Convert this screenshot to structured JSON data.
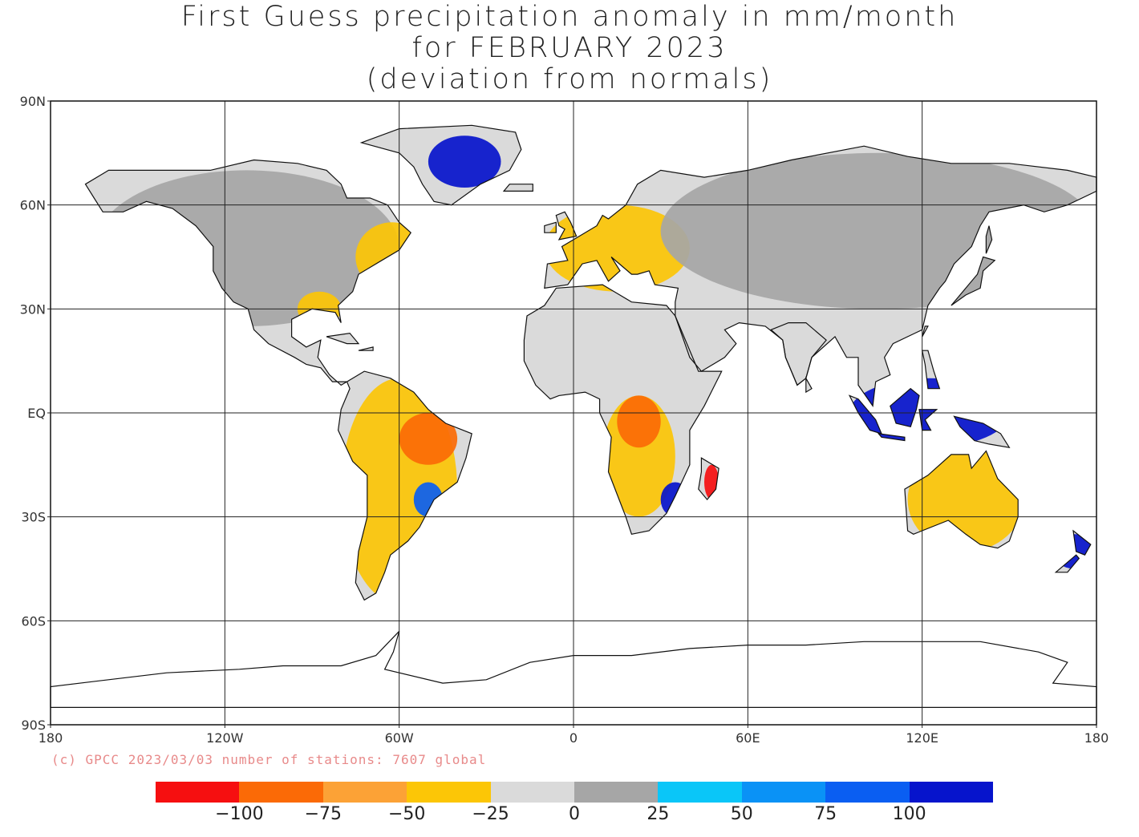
{
  "title": {
    "line1": "First Guess precipitation anomaly in mm/month",
    "line2": "for FEBRUARY 2023",
    "line3": "(deviation from normals)"
  },
  "axes": {
    "lat_ticks": [
      "90N",
      "60N",
      "30N",
      "EQ",
      "30S",
      "60S",
      "90S"
    ],
    "lon_ticks": [
      "180",
      "120W",
      "60W",
      "0",
      "60E",
      "120E",
      "180"
    ]
  },
  "credit": "(c) GPCC 2023/03/03 number of stations: 7607 global",
  "colorbar": {
    "colors": [
      "#f60f10",
      "#fb6a06",
      "#fca236",
      "#fcc606",
      "#dadada",
      "#a6a6a6",
      "#0ac6f8",
      "#0a92f6",
      "#0a5ef2",
      "#0614cc"
    ],
    "labels": [
      "−100",
      "−75",
      "−50",
      "−25",
      "0",
      "25",
      "50",
      "75",
      "100"
    ]
  },
  "chart_data": {
    "type": "heatmap",
    "title": "First Guess precipitation anomaly in mm/month for FEBRUARY 2023 (deviation from normals)",
    "xlim": [
      -180,
      180
    ],
    "ylim": [
      -90,
      90
    ],
    "colorbar_bounds": [
      -125,
      -100,
      -75,
      -50,
      -25,
      0,
      25,
      50,
      75,
      100,
      125
    ],
    "regions": [
      {
        "lon": [
          -165,
          -60
        ],
        "lat": [
          25,
          70
        ],
        "class": 5
      },
      {
        "lon": [
          -75,
          -50
        ],
        "lat": [
          35,
          55
        ],
        "class": 3
      },
      {
        "lon": [
          -95,
          -80
        ],
        "lat": [
          25,
          35
        ],
        "class": 3
      },
      {
        "lon": [
          -80,
          -40
        ],
        "lat": [
          -55,
          10
        ],
        "class": 3
      },
      {
        "lon": [
          -60,
          -40
        ],
        "lat": [
          -15,
          0
        ],
        "class": 1
      },
      {
        "lon": [
          -55,
          -45
        ],
        "lat": [
          -30,
          -20
        ],
        "class": 8
      },
      {
        "lon": [
          -50,
          -25
        ],
        "lat": [
          65,
          80
        ],
        "class": 9
      },
      {
        "lon": [
          -20,
          60
        ],
        "lat": [
          -35,
          35
        ],
        "class": 4
      },
      {
        "lon": [
          10,
          35
        ],
        "lat": [
          -30,
          5
        ],
        "class": 3
      },
      {
        "lon": [
          15,
          30
        ],
        "lat": [
          -10,
          5
        ],
        "class": 1
      },
      {
        "lon": [
          30,
          40
        ],
        "lat": [
          -30,
          -20
        ],
        "class": 9
      },
      {
        "lon": [
          45,
          50
        ],
        "lat": [
          -25,
          -15
        ],
        "class": 0
      },
      {
        "lon": [
          -10,
          40
        ],
        "lat": [
          35,
          60
        ],
        "class": 3
      },
      {
        "lon": [
          30,
          180
        ],
        "lat": [
          30,
          75
        ],
        "class": 5
      },
      {
        "lon": [
          60,
          120
        ],
        "lat": [
          0,
          30
        ],
        "class": 4
      },
      {
        "lon": [
          95,
          150
        ],
        "lat": [
          -10,
          10
        ],
        "class": 9
      },
      {
        "lon": [
          115,
          155
        ],
        "lat": [
          -40,
          -10
        ],
        "class": 3
      },
      {
        "lon": [
          165,
          180
        ],
        "lat": [
          -45,
          -35
        ],
        "class": 9
      }
    ]
  }
}
